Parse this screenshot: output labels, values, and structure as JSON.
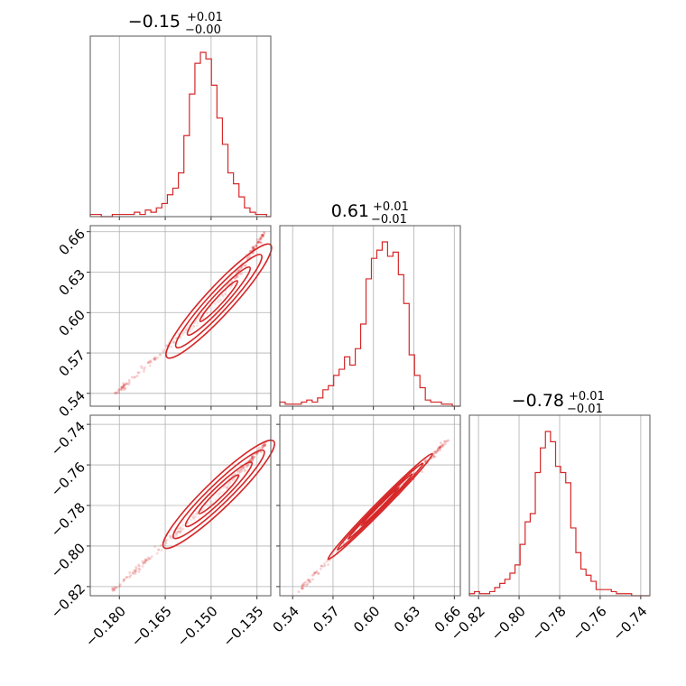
{
  "chart_data": {
    "type": "corner",
    "color": "#d62728",
    "parameters": [
      {
        "id": "p0",
        "range": [
          -0.1895,
          -0.1305
        ],
        "ticks": [
          -0.18,
          -0.165,
          -0.15,
          -0.135
        ],
        "tick_labels": [
          "−0.180",
          "−0.165",
          "−0.150",
          "−0.135"
        ],
        "title": {
          "main": "−0.15",
          "plus": "+0.01",
          "minus": "−0.00"
        }
      },
      {
        "id": "p1",
        "range": [
          0.5305,
          0.6645
        ],
        "ticks": [
          0.54,
          0.57,
          0.6,
          0.63,
          0.66
        ],
        "tick_labels": [
          "0.54",
          "0.57",
          "0.60",
          "0.63",
          "0.66"
        ],
        "title": {
          "main": "0.61",
          "plus": "+0.01",
          "minus": "−0.01"
        }
      },
      {
        "id": "p2",
        "range": [
          -0.8245,
          -0.7355
        ],
        "ticks": [
          -0.82,
          -0.8,
          -0.78,
          -0.76,
          -0.74
        ],
        "tick_labels": [
          "−0.82",
          "−0.80",
          "−0.78",
          "−0.76",
          "−0.74"
        ],
        "title": {
          "main": "−0.78",
          "plus": "+0.01",
          "minus": "−0.01"
        }
      }
    ],
    "histograms": {
      "p0": {
        "bins": [
          -0.1895,
          -0.1877,
          -0.1859,
          -0.1841,
          -0.1823,
          -0.1805,
          -0.1787,
          -0.1769,
          -0.1751,
          -0.1733,
          -0.1715,
          -0.1697,
          -0.1679,
          -0.1661,
          -0.1643,
          -0.1625,
          -0.1607,
          -0.1589,
          -0.1571,
          -0.1553,
          -0.1535,
          -0.1517,
          -0.1499,
          -0.1481,
          -0.1463,
          -0.1445,
          -0.1427,
          -0.1409,
          -0.1391,
          -0.1373,
          -0.1355,
          -0.1337,
          -0.1319,
          -0.1305
        ],
        "counts": [
          1,
          1,
          0,
          0,
          1,
          1,
          1,
          1,
          2,
          1,
          3,
          2,
          4,
          6,
          10,
          13,
          20,
          37,
          56,
          70,
          75,
          72,
          60,
          45,
          33,
          20,
          15,
          9,
          4,
          2,
          1,
          1,
          0
        ]
      },
      "p1": {
        "bins": [
          0.5305,
          0.5345,
          0.5385,
          0.5425,
          0.5465,
          0.5505,
          0.5545,
          0.5585,
          0.5625,
          0.5665,
          0.5705,
          0.5745,
          0.5785,
          0.5825,
          0.5865,
          0.5905,
          0.5945,
          0.5985,
          0.6025,
          0.6065,
          0.6105,
          0.6145,
          0.6185,
          0.6225,
          0.6265,
          0.6305,
          0.6345,
          0.6385,
          0.6425,
          0.6465,
          0.6505,
          0.6545,
          0.6585,
          0.6645
        ],
        "counts": [
          2,
          1,
          1,
          1,
          2,
          3,
          2,
          4,
          8,
          10,
          15,
          18,
          24,
          20,
          28,
          40,
          62,
          72,
          76,
          80,
          73,
          75,
          64,
          50,
          25,
          15,
          9,
          3,
          2,
          2,
          1,
          1,
          0
        ]
      },
      "p2": {
        "bins": [
          -0.8245,
          -0.822,
          -0.8195,
          -0.817,
          -0.8145,
          -0.812,
          -0.8095,
          -0.807,
          -0.8045,
          -0.802,
          -0.7995,
          -0.797,
          -0.7945,
          -0.792,
          -0.7895,
          -0.787,
          -0.7845,
          -0.782,
          -0.7795,
          -0.777,
          -0.7745,
          -0.772,
          -0.7695,
          -0.767,
          -0.7645,
          -0.762,
          -0.7595,
          -0.757,
          -0.7545,
          -0.752,
          -0.7495,
          -0.747,
          -0.7445,
          -0.7355
        ],
        "counts": [
          1,
          2,
          1,
          1,
          2,
          4,
          6,
          8,
          11,
          15,
          25,
          36,
          40,
          60,
          72,
          80,
          75,
          63,
          60,
          55,
          33,
          21,
          13,
          10,
          7,
          3,
          3,
          3,
          2,
          1,
          1,
          1,
          0
        ]
      }
    },
    "pairs": [
      {
        "x": "p0",
        "y": "p1",
        "center": [
          -0.1475,
          0.6085
        ],
        "trend": [
          [
            -0.181,
            0.54
          ],
          [
            -0.1475,
            0.6085
          ],
          [
            -0.132,
            0.661
          ]
        ],
        "ellipse_widths": [
          0.0045,
          0.0033,
          0.0022,
          0.0012
        ],
        "ellipse_lengths": [
          0.05,
          0.041,
          0.03,
          0.018
        ]
      },
      {
        "x": "p0",
        "y": "p2",
        "center": [
          -0.1475,
          -0.7745
        ],
        "trend": [
          [
            -0.182,
            -0.822
          ],
          [
            -0.1475,
            -0.7745
          ],
          [
            -0.132,
            -0.749
          ]
        ],
        "ellipse_widths": [
          0.0045,
          0.0033,
          0.0022,
          0.0012
        ],
        "ellipse_lengths": [
          0.05,
          0.041,
          0.03,
          0.018
        ]
      },
      {
        "x": "p1",
        "y": "p2",
        "center": [
          0.605,
          -0.7805
        ],
        "trend": [
          [
            0.545,
            -0.822
          ],
          [
            0.605,
            -0.7805
          ],
          [
            0.655,
            -0.748
          ]
        ],
        "ellipse_widths": [
          0.0035,
          0.0025,
          0.0016,
          0.0009
        ],
        "ellipse_lengths": [
          0.11,
          0.09,
          0.068,
          0.04
        ]
      }
    ]
  }
}
